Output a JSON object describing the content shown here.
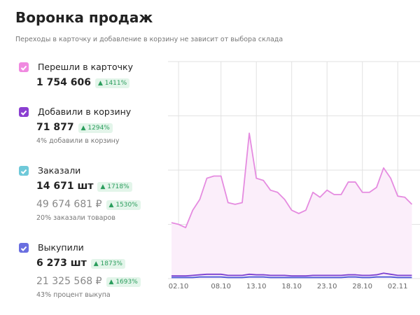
{
  "header": {
    "title": "Воронка продаж",
    "subtitle": "Переходы в карточку и добавление в корзину не зависит от выбора склада"
  },
  "metrics": [
    {
      "label": "Перешли в карточку",
      "color": "#f08ae0",
      "value": "1 754 606",
      "change": "1411%"
    },
    {
      "label": "Добавили в корзину",
      "color": "#8b3fd1",
      "value": "71 877",
      "change": "1294%",
      "note": "4% добавили в корзину"
    },
    {
      "label": "Заказали",
      "color": "#6fc9d9",
      "value": "14 671 шт",
      "change": "1718%",
      "value2": "49 674 681 ₽",
      "change2": "1530%",
      "note": "20% заказали товаров"
    },
    {
      "label": "Выкупили",
      "color": "#6a6fe0",
      "value": "6 273 шт",
      "change": "1873%",
      "value2": "21 325 568 ₽",
      "change2": "1693%",
      "note": "43% процент выкупа"
    }
  ],
  "chart_data": {
    "type": "line",
    "categories": [
      null,
      "02.10",
      null,
      null,
      null,
      null,
      null,
      "08.10",
      null,
      null,
      null,
      null,
      "13.10",
      null,
      null,
      null,
      null,
      "18.10",
      null,
      null,
      null,
      null,
      "23.10",
      null,
      null,
      null,
      null,
      "28.10",
      null,
      null,
      null,
      null,
      "02.11",
      null,
      null
    ],
    "series": [
      {
        "color": "#e58be0",
        "fill": "#fbeefa",
        "values": [
          1.03,
          1.0,
          0.94,
          1.26,
          1.46,
          1.85,
          1.89,
          1.89,
          1.4,
          1.37,
          1.4,
          2.68,
          1.85,
          1.81,
          1.63,
          1.59,
          1.46,
          1.26,
          1.2,
          1.26,
          1.59,
          1.5,
          1.63,
          1.55,
          1.55,
          1.78,
          1.78,
          1.59,
          1.59,
          1.68,
          2.04,
          1.85,
          1.52,
          1.5,
          1.37
        ]
      },
      {
        "color": "#7b3fd0",
        "values": [
          0.05,
          0.05,
          0.05,
          0.06,
          0.07,
          0.08,
          0.08,
          0.08,
          0.06,
          0.06,
          0.06,
          0.08,
          0.07,
          0.07,
          0.06,
          0.06,
          0.06,
          0.05,
          0.05,
          0.05,
          0.06,
          0.06,
          0.06,
          0.06,
          0.06,
          0.07,
          0.07,
          0.06,
          0.06,
          0.07,
          0.1,
          0.08,
          0.06,
          0.06,
          0.06
        ]
      },
      {
        "color": "#4b5bd6",
        "values": [
          0.02,
          0.02,
          0.02,
          0.02,
          0.03,
          0.03,
          0.03,
          0.03,
          0.02,
          0.02,
          0.02,
          0.03,
          0.03,
          0.03,
          0.02,
          0.02,
          0.02,
          0.02,
          0.02,
          0.02,
          0.02,
          0.02,
          0.02,
          0.02,
          0.02,
          0.03,
          0.03,
          0.02,
          0.02,
          0.03,
          0.03,
          0.03,
          0.02,
          0.02,
          0.02
        ]
      }
    ],
    "ylim": [
      0,
      4
    ],
    "yticks": [
      0,
      1,
      2,
      3,
      4
    ],
    "grid": true
  }
}
